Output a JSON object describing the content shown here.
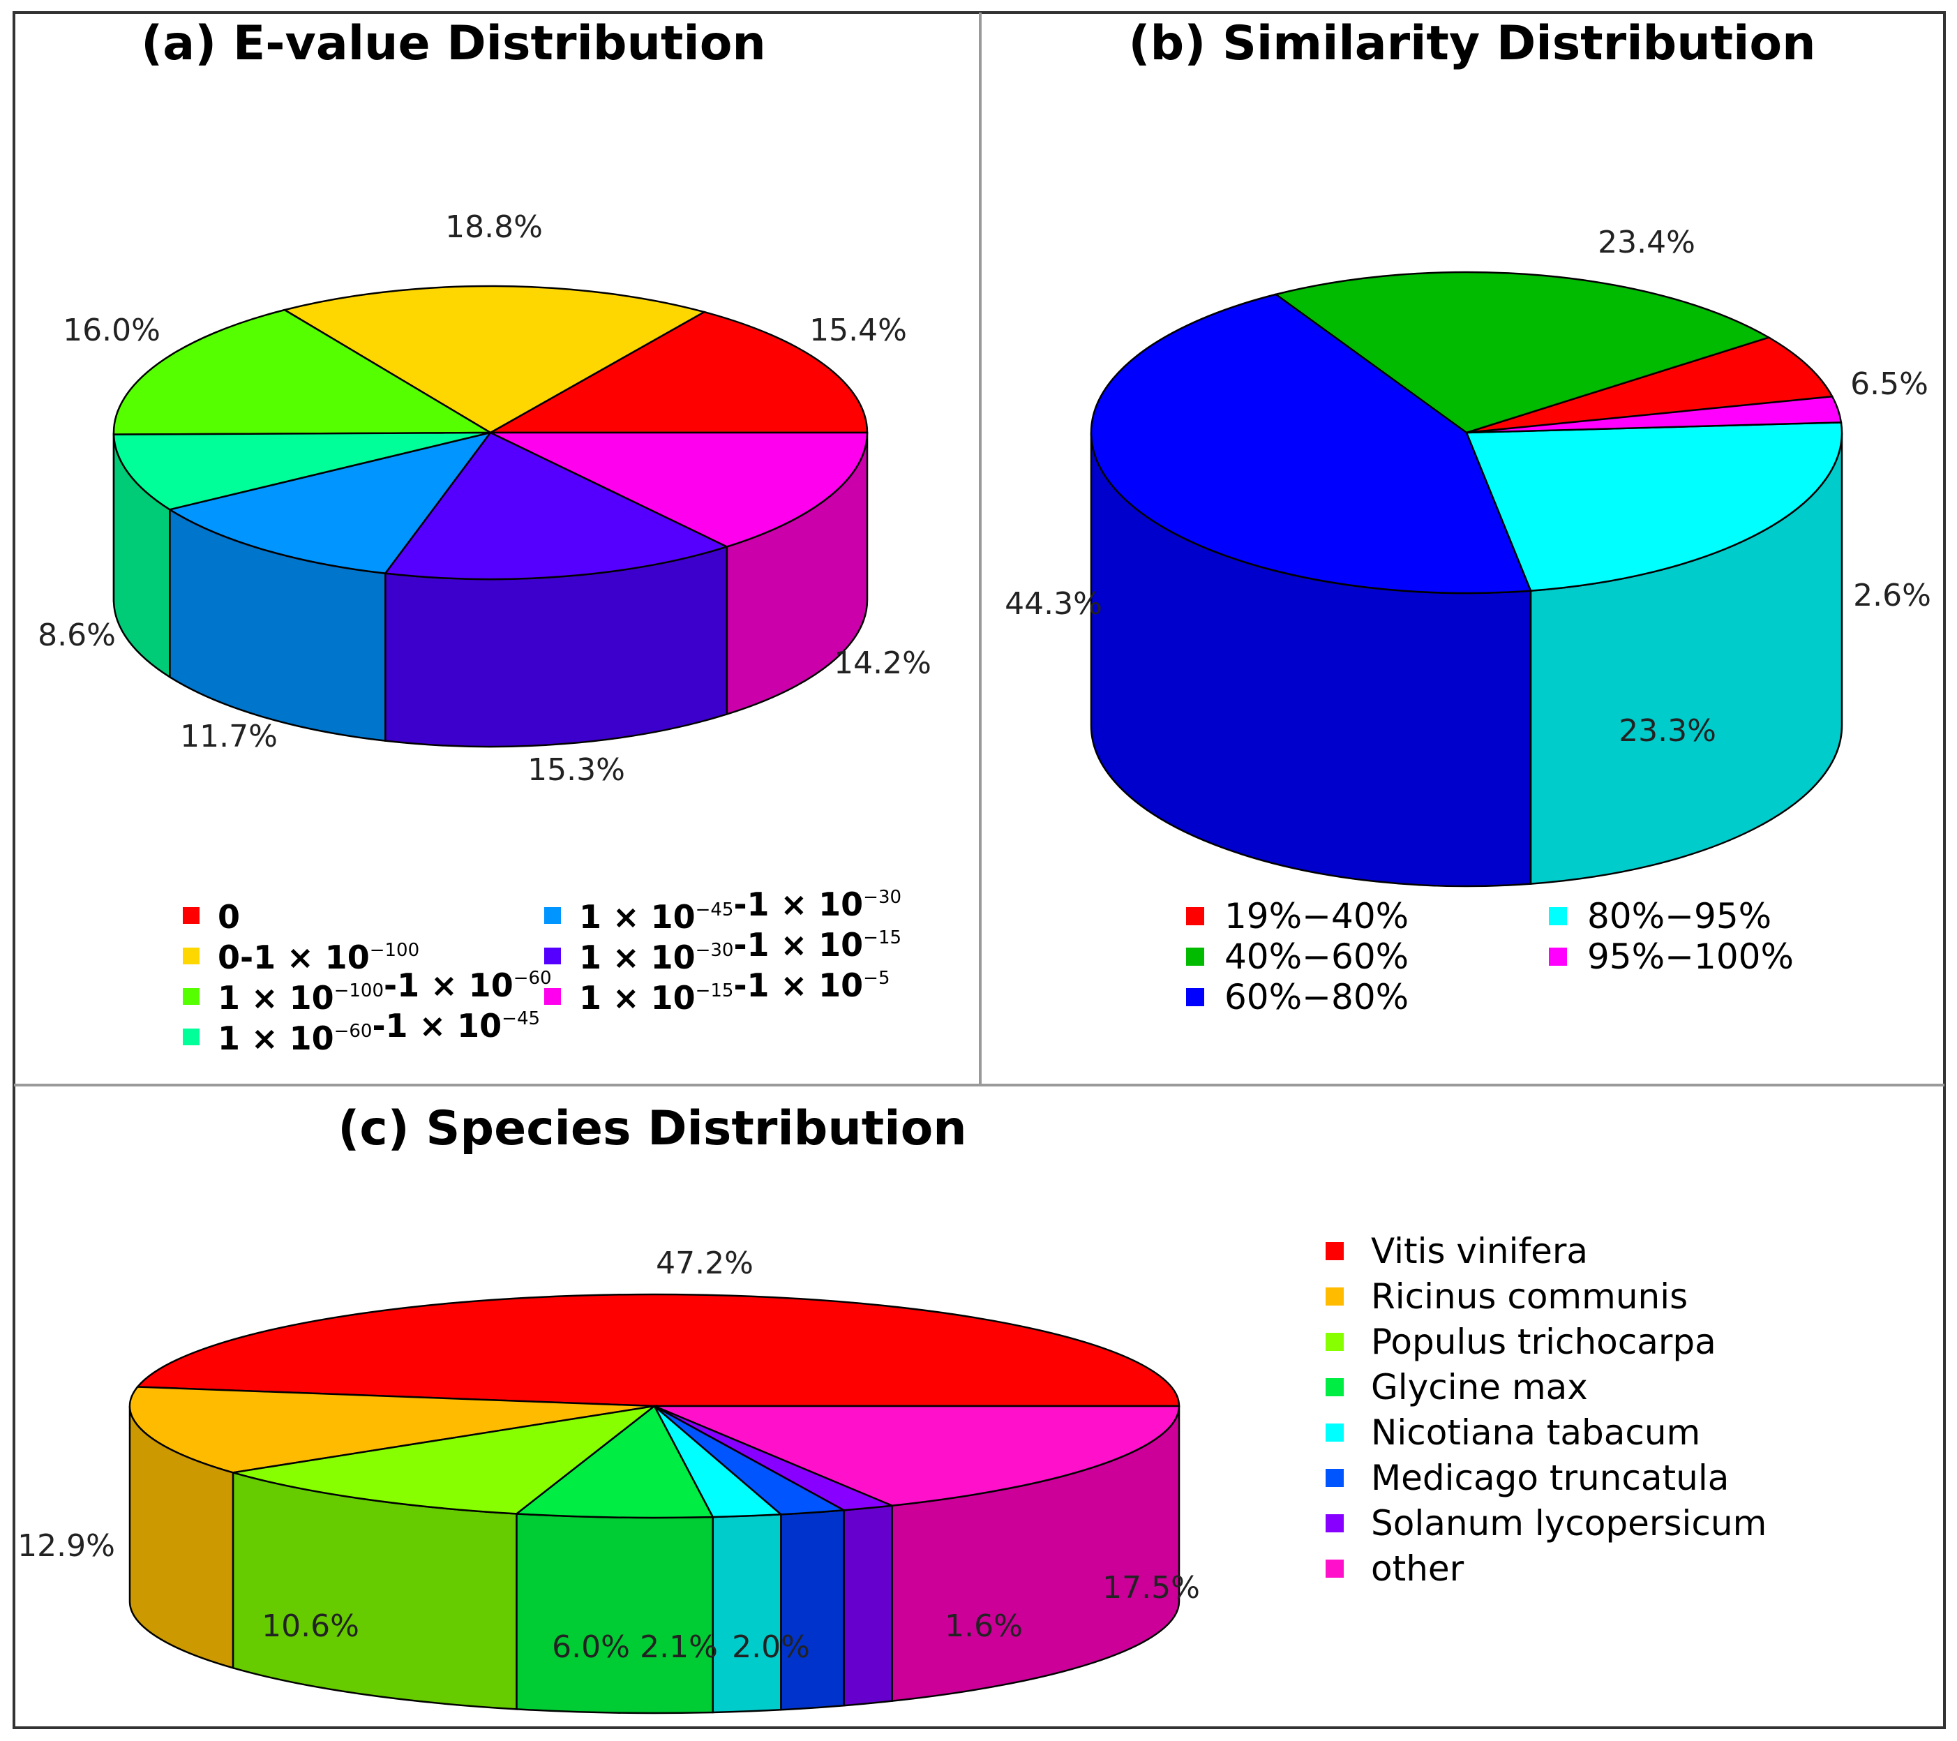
{
  "chart_data": [
    {
      "type": "pie",
      "title": "(a) E-value Distribution",
      "slices": [
        {
          "label": "0",
          "value": 15.4,
          "display": "15.4%",
          "color": "#ff0000",
          "side": "#cc0000"
        },
        {
          "label": "0-1 × 10⁻¹⁰⁰",
          "value": 18.8,
          "display": "18.8%",
          "color": "#ffd700",
          "side": "#ccac00"
        },
        {
          "label": "1 × 10⁻¹⁰⁰-1 × 10⁻⁶⁰",
          "value": 16.0,
          "display": "16.0%",
          "color": "#55ff00",
          "side": "#44cc00"
        },
        {
          "label": "1 × 10⁻⁶⁰-1 × 10⁻⁴⁵",
          "value": 8.6,
          "display": "8.6%",
          "color": "#00ff99",
          "side": "#00cc77"
        },
        {
          "label": "1 × 10⁻⁴⁵-1 × 10⁻³⁰",
          "value": 11.7,
          "display": "11.7%",
          "color": "#0095ff",
          "side": "#0075cc"
        },
        {
          "label": "1 × 10⁻³⁰-1 × 10⁻¹⁵",
          "value": 15.3,
          "display": "15.3%",
          "color": "#5500ff",
          "side": "#3d00cc"
        },
        {
          "label": "1 × 10⁻¹⁵-1 × 10⁻⁵",
          "value": 14.2,
          "display": "14.2%",
          "color": "#ff00ee",
          "side": "#cc00aa"
        }
      ],
      "legend": [
        {
          "base": "0",
          "parts": []
        },
        {
          "base": "0",
          "parts": [
            [
              "-1 × 10",
              "−100"
            ]
          ]
        },
        {
          "base": "1 × 10",
          "parts": [
            [
              "−100"
            ],
            [
              "-1 × 10",
              "−60"
            ]
          ]
        },
        {
          "base": "1 × 10",
          "parts": [
            [
              "−60"
            ],
            [
              "-1 × 10",
              "−45"
            ]
          ]
        },
        {
          "base": "1 × 10",
          "parts": [
            [
              "−45"
            ],
            [
              "-1 × 10",
              "−30"
            ]
          ]
        },
        {
          "base": "1 × 10",
          "parts": [
            [
              "−30"
            ],
            [
              "-1 × 10",
              "−15"
            ]
          ]
        },
        {
          "base": "1 × 10",
          "parts": [
            [
              "−15"
            ],
            [
              "-1 × 10",
              "−5"
            ]
          ]
        }
      ]
    },
    {
      "type": "pie",
      "title": "(b) Similarity Distribution",
      "slices": [
        {
          "label": "19%−40%",
          "value": 6.5,
          "display": "6.5%",
          "color": "#ff0000",
          "side": "#cc0000"
        },
        {
          "label": "40%−60%",
          "value": 23.4,
          "display": "23.4%",
          "color": "#00bb00",
          "side": "#009900"
        },
        {
          "label": "60%−80%",
          "value": 44.3,
          "display": "44.3%",
          "color": "#0000ff",
          "side": "#0000cc"
        },
        {
          "label": "80%−95%",
          "value": 23.3,
          "display": "23.3%",
          "color": "#00ffff",
          "side": "#00cccc"
        },
        {
          "label": "95%−100%",
          "value": 2.6,
          "display": "2.6%",
          "color": "#ff00ff",
          "side": "#aa00aa"
        }
      ]
    },
    {
      "type": "pie",
      "title": "(c) Species Distribution",
      "slices": [
        {
          "label": "Vitis vinifera",
          "value": 47.2,
          "display": "47.2%",
          "color": "#ff0000",
          "side": "#cc0000"
        },
        {
          "label": "Ricinus communis",
          "value": 12.9,
          "display": "12.9%",
          "color": "#ffbb00",
          "side": "#cc9900"
        },
        {
          "label": "Populus trichocarpa",
          "value": 10.6,
          "display": "10.6%",
          "color": "#88ff00",
          "side": "#66cc00"
        },
        {
          "label": "Glycine max",
          "value": 6.0,
          "display": "6.0%",
          "color": "#00ee44",
          "side": "#00cc33"
        },
        {
          "label": "Nicotiana tabacum",
          "value": 2.1,
          "display": "2.1%",
          "color": "#00ffff",
          "side": "#00cccc"
        },
        {
          "label": "Medicago truncatula",
          "value": 2.0,
          "display": "2.0%",
          "color": "#0055ff",
          "side": "#0033cc"
        },
        {
          "label": "Solanum lycopersicum",
          "value": 1.6,
          "display": "1.6%",
          "color": "#8800ff",
          "side": "#6600cc"
        },
        {
          "label": "other",
          "value": 17.5,
          "display": "17.5%",
          "color": "#ff11cc",
          "side": "#cc0099"
        }
      ]
    }
  ]
}
